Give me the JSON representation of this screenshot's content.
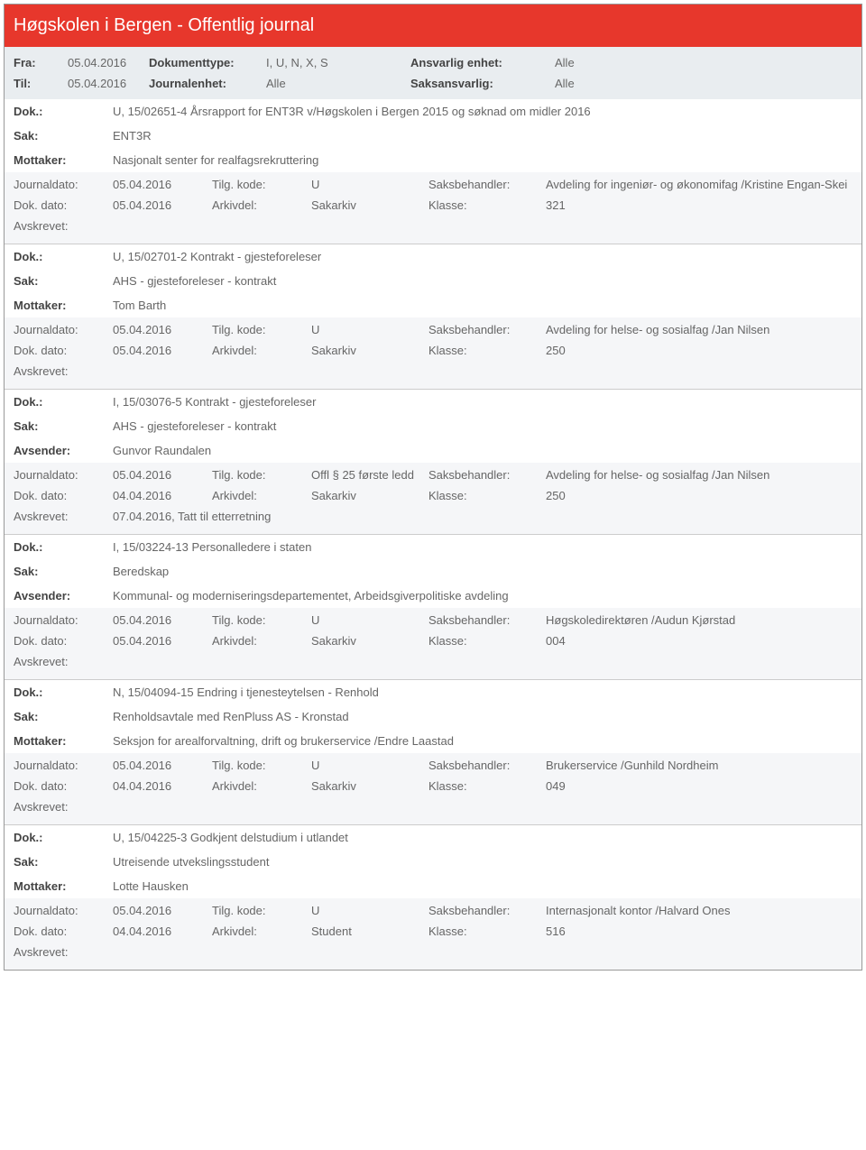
{
  "header": {
    "title": "Høgskolen i Bergen - Offentlig journal"
  },
  "meta": {
    "fra_label": "Fra:",
    "fra_val": "05.04.2016",
    "til_label": "Til:",
    "til_val": "05.04.2016",
    "doktype_label": "Dokumenttype:",
    "doktype_val": "I, U, N, X, S",
    "journalenhet_label": "Journalenhet:",
    "journalenhet_val": "Alle",
    "ansvarlig_label": "Ansvarlig enhet:",
    "ansvarlig_val": "Alle",
    "saksansvarlig_label": "Saksansvarlig:",
    "saksansvarlig_val": "Alle"
  },
  "labels": {
    "dok": "Dok.:",
    "sak": "Sak:",
    "mottaker": "Mottaker:",
    "avsender": "Avsender:",
    "journaldato": "Journaldato:",
    "tilgkode": "Tilg. kode:",
    "saksbehandler": "Saksbehandler:",
    "dokdato": "Dok. dato:",
    "arkivdel": "Arkivdel:",
    "klasse": "Klasse:",
    "avskrevet": "Avskrevet:"
  },
  "entries": [
    {
      "dok": "U, 15/02651-4 Årsrapport for ENT3R v/Høgskolen i Bergen 2015 og søknad om midler 2016",
      "sak": "ENT3R",
      "party_label": "Mottaker:",
      "party": "Nasjonalt senter for realfagsrekruttering",
      "journaldato": "05.04.2016",
      "tilgkode": "U",
      "saksbehandler": "Avdeling for ingeniør- og økonomifag /Kristine Engan-Skei",
      "dokdato": "05.04.2016",
      "arkivdel": "Sakarkiv",
      "klasse": "321",
      "avskrevet": ""
    },
    {
      "dok": "U, 15/02701-2 Kontrakt - gjesteforeleser",
      "sak": "AHS - gjesteforeleser - kontrakt",
      "party_label": "Mottaker:",
      "party": "Tom Barth",
      "journaldato": "05.04.2016",
      "tilgkode": "U",
      "saksbehandler": "Avdeling for helse- og sosialfag /Jan Nilsen",
      "dokdato": "05.04.2016",
      "arkivdel": "Sakarkiv",
      "klasse": "250",
      "avskrevet": ""
    },
    {
      "dok": "I, 15/03076-5 Kontrakt - gjesteforeleser",
      "sak": "AHS - gjesteforeleser - kontrakt",
      "party_label": "Avsender:",
      "party": "Gunvor Raundalen",
      "journaldato": "05.04.2016",
      "tilgkode": "Offl § 25 første ledd",
      "saksbehandler": "Avdeling for helse- og sosialfag /Jan Nilsen",
      "dokdato": "04.04.2016",
      "arkivdel": "Sakarkiv",
      "klasse": "250",
      "avskrevet": "07.04.2016, Tatt til etterretning"
    },
    {
      "dok": "I, 15/03224-13 Personalledere i staten",
      "sak": "Beredskap",
      "party_label": "Avsender:",
      "party": "Kommunal- og moderniseringsdepartementet, Arbeidsgiverpolitiske avdeling",
      "journaldato": "05.04.2016",
      "tilgkode": "U",
      "saksbehandler": "Høgskoledirektøren /Audun Kjørstad",
      "dokdato": "05.04.2016",
      "arkivdel": "Sakarkiv",
      "klasse": "004",
      "avskrevet": ""
    },
    {
      "dok": "N, 15/04094-15 Endring i tjenesteytelsen - Renhold",
      "sak": "Renholdsavtale med RenPluss AS - Kronstad",
      "party_label": "Mottaker:",
      "party": "Seksjon for arealforvaltning, drift og brukerservice /Endre Laastad",
      "journaldato": "05.04.2016",
      "tilgkode": "U",
      "saksbehandler": "Brukerservice /Gunhild Nordheim",
      "dokdato": "04.04.2016",
      "arkivdel": "Sakarkiv",
      "klasse": "049",
      "avskrevet": ""
    },
    {
      "dok": "U, 15/04225-3 Godkjent delstudium i utlandet",
      "sak": "Utreisende utvekslingsstudent",
      "party_label": "Mottaker:",
      "party": "Lotte Hausken",
      "journaldato": "05.04.2016",
      "tilgkode": "U",
      "saksbehandler": "Internasjonalt kontor /Halvard Ones",
      "dokdato": "04.04.2016",
      "arkivdel": "Student",
      "klasse": "516",
      "avskrevet": ""
    }
  ]
}
